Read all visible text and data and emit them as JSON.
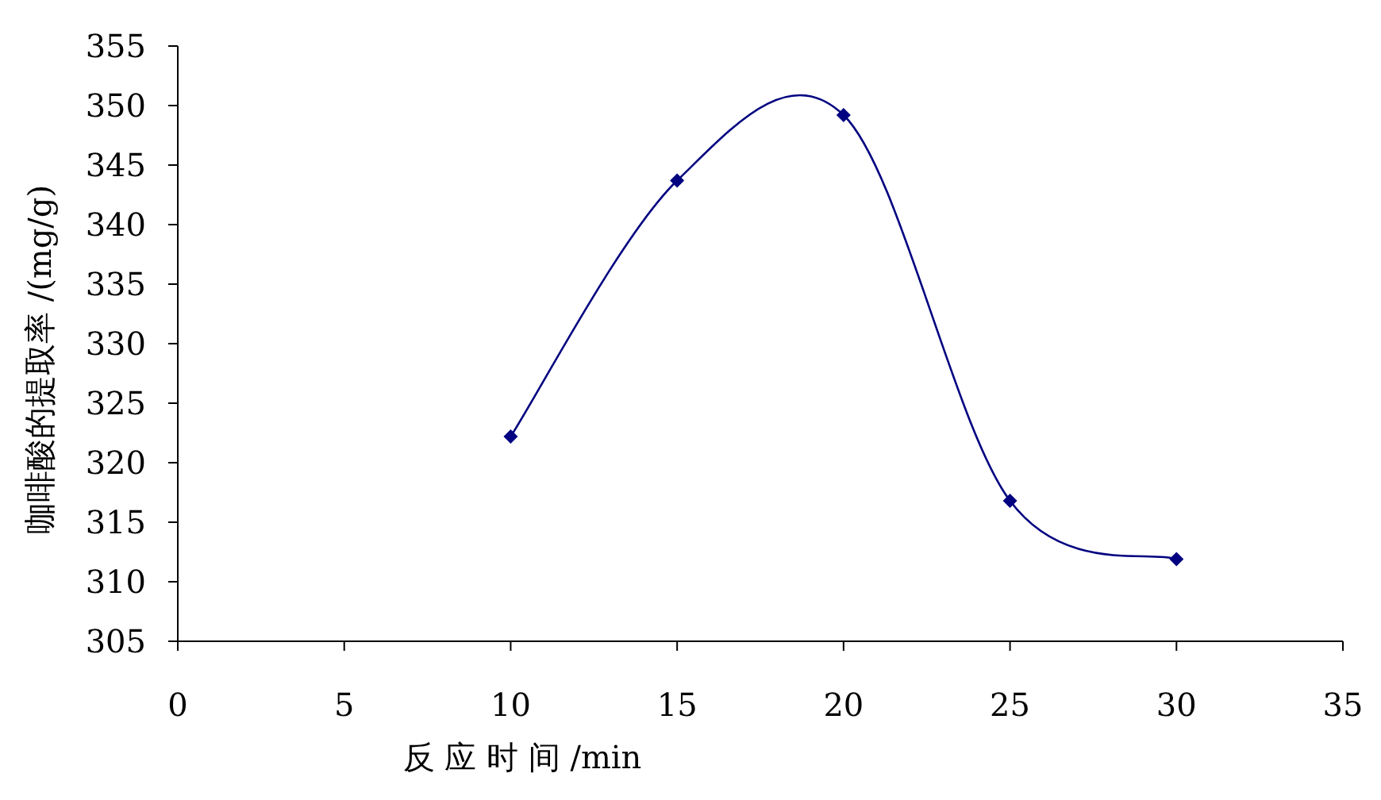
{
  "chart_data": {
    "type": "line",
    "xlabel": "反 应 时 间 /min",
    "ylabel": "咖啡酸的提取率 /(mg/g)",
    "x": [
      10,
      15,
      20,
      25,
      30
    ],
    "series": [
      {
        "color": "#000080",
        "values": [
          322.2,
          343.7,
          349.2,
          316.8,
          311.9
        ]
      }
    ],
    "xlim": [
      0,
      35
    ],
    "xticks": [
      0,
      5,
      10,
      15,
      20,
      25,
      30,
      35
    ],
    "ylim": [
      305,
      355
    ],
    "yticks": [
      305,
      310,
      315,
      320,
      325,
      330,
      335,
      340,
      345,
      350,
      355
    ],
    "grid": false,
    "marker": "diamond",
    "line_style": "solid"
  }
}
